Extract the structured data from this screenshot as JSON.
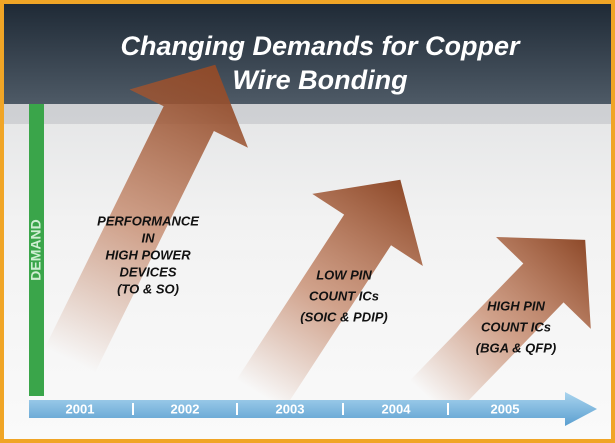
{
  "title": [
    "Changing Demands for Copper",
    "Wire Bonding"
  ],
  "axis_label": "DEMAND",
  "years": [
    "2001",
    "2002",
    "2003",
    "2004",
    "2005"
  ],
  "arrows": [
    {
      "label": [
        "PERFORMANCE",
        "IN",
        "HIGH POWER",
        "DEVICES",
        "(TO & SO)"
      ]
    },
    {
      "label": [
        "LOW PIN",
        "COUNT ICs",
        "(SOIC & PDIP)"
      ]
    },
    {
      "label": [
        "HIGH PIN",
        "COUNT ICs",
        "(BGA & QFP)"
      ]
    }
  ]
}
